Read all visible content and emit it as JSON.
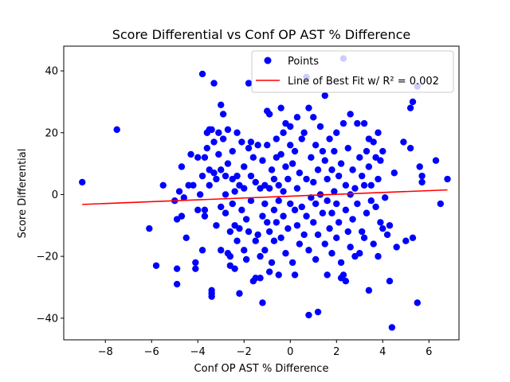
{
  "chart_data": {
    "type": "scatter",
    "title": "Score Differential vs Conf OP AST % Difference",
    "xlabel": "Conf OP AST % Difference",
    "ylabel": "Score Differential",
    "xlim": [
      -9.8,
      7.3
    ],
    "ylim": [
      -47,
      48
    ],
    "x_ticks": [
      -8,
      -6,
      -4,
      -2,
      0,
      2,
      4,
      6
    ],
    "y_ticks": [
      -40,
      -20,
      0,
      20,
      40
    ],
    "tick_labels": {
      "x": [
        "−8",
        "−6",
        "−4",
        "−2",
        "0",
        "2",
        "4",
        "6"
      ],
      "y": [
        "−40",
        "−20",
        "0",
        "20",
        "40"
      ]
    },
    "grid": false,
    "legend_position": "top-right",
    "colors": {
      "points": "#0000ff",
      "fit_line": "#ff0000"
    },
    "series": [
      {
        "name": "Points",
        "kind": "scatter",
        "points": [
          [
            -9.0,
            4
          ],
          [
            -7.5,
            21
          ],
          [
            -6.1,
            -11
          ],
          [
            -5.8,
            -23
          ],
          [
            -5.5,
            3
          ],
          [
            -5.0,
            -2
          ],
          [
            -4.9,
            -8
          ],
          [
            -4.9,
            -24
          ],
          [
            -4.9,
            -29
          ],
          [
            -4.8,
            1
          ],
          [
            -4.7,
            -7
          ],
          [
            -4.7,
            9
          ],
          [
            -4.6,
            -1
          ],
          [
            -4.5,
            -14
          ],
          [
            -4.4,
            3
          ],
          [
            -4.3,
            13
          ],
          [
            -4.2,
            3
          ],
          [
            -4.1,
            -22
          ],
          [
            -4.1,
            -24
          ],
          [
            -4.0,
            -5
          ],
          [
            -4.0,
            12
          ],
          [
            -3.9,
            0
          ],
          [
            -3.8,
            39
          ],
          [
            -3.8,
            -18
          ],
          [
            -3.8,
            6
          ],
          [
            -3.7,
            12
          ],
          [
            -3.7,
            -7
          ],
          [
            -3.7,
            -5
          ],
          [
            -3.6,
            20
          ],
          [
            -3.6,
            15
          ],
          [
            -3.5,
            21
          ],
          [
            -3.5,
            8
          ],
          [
            -3.5,
            3
          ],
          [
            -3.4,
            -31
          ],
          [
            -3.4,
            -33
          ],
          [
            -3.4,
            -32
          ],
          [
            -3.4,
            21
          ],
          [
            -3.3,
            36
          ],
          [
            -3.3,
            17
          ],
          [
            -3.3,
            7
          ],
          [
            -3.2,
            5
          ],
          [
            -3.2,
            -10
          ],
          [
            -3.1,
            20
          ],
          [
            -3.1,
            13
          ],
          [
            -3.0,
            29
          ],
          [
            -3.0,
            -18
          ],
          [
            -3.0,
            -4
          ],
          [
            -3.0,
            8
          ],
          [
            -2.9,
            26
          ],
          [
            -2.9,
            18
          ],
          [
            -2.8,
            6
          ],
          [
            -2.8,
            0
          ],
          [
            -2.8,
            -6
          ],
          [
            -2.7,
            21
          ],
          [
            -2.7,
            10
          ],
          [
            -2.7,
            -19
          ],
          [
            -2.6,
            -20
          ],
          [
            -2.6,
            -12
          ],
          [
            -2.6,
            -23
          ],
          [
            -2.5,
            14
          ],
          [
            -2.5,
            5
          ],
          [
            -2.5,
            -3
          ],
          [
            -2.4,
            -24
          ],
          [
            -2.4,
            -10
          ],
          [
            -2.4,
            1
          ],
          [
            -2.3,
            20
          ],
          [
            -2.3,
            6
          ],
          [
            -2.3,
            -15
          ],
          [
            -2.2,
            -11
          ],
          [
            -2.2,
            3
          ],
          [
            -2.2,
            -32
          ],
          [
            -2.1,
            17
          ],
          [
            -2.1,
            -5
          ],
          [
            -2.0,
            9
          ],
          [
            -2.0,
            2
          ],
          [
            -2.0,
            -18
          ],
          [
            -1.9,
            -8
          ],
          [
            -1.9,
            -21
          ],
          [
            -1.8,
            36
          ],
          [
            -1.8,
            15
          ],
          [
            -1.8,
            -12
          ],
          [
            -1.7,
            17
          ],
          [
            -1.7,
            6
          ],
          [
            -1.7,
            -2
          ],
          [
            -1.6,
            -28
          ],
          [
            -1.6,
            12
          ],
          [
            -1.5,
            -27
          ],
          [
            -1.5,
            -15
          ],
          [
            -1.5,
            4
          ],
          [
            -1.4,
            16
          ],
          [
            -1.4,
            -13
          ],
          [
            -1.3,
            -27
          ],
          [
            -1.3,
            2
          ],
          [
            -1.3,
            -20
          ],
          [
            -1.2,
            -35
          ],
          [
            -1.2,
            11
          ],
          [
            -1.2,
            -7
          ],
          [
            -1.1,
            3
          ],
          [
            -1.1,
            -3
          ],
          [
            -1.1,
            -18
          ],
          [
            -1.0,
            27
          ],
          [
            -1.0,
            16
          ],
          [
            -1.0,
            -9
          ],
          [
            -0.9,
            26
          ],
          [
            -0.9,
            2
          ],
          [
            -0.9,
            -25
          ],
          [
            -0.9,
            -12
          ],
          [
            -0.8,
            8
          ],
          [
            -0.8,
            -22
          ],
          [
            -0.7,
            5
          ],
          [
            -0.7,
            -5
          ],
          [
            -0.7,
            -15
          ],
          [
            -0.6,
            18
          ],
          [
            -0.6,
            12
          ],
          [
            -0.6,
            -9
          ],
          [
            -0.5,
            -26
          ],
          [
            -0.5,
            3
          ],
          [
            -0.5,
            -2
          ],
          [
            -0.4,
            28
          ],
          [
            -0.4,
            13
          ],
          [
            -0.4,
            -14
          ],
          [
            -0.3,
            20
          ],
          [
            -0.3,
            -7
          ],
          [
            -0.3,
            1
          ],
          [
            -0.2,
            23
          ],
          [
            -0.2,
            9
          ],
          [
            -0.2,
            -19
          ],
          [
            -0.1,
            5
          ],
          [
            -0.1,
            -11
          ],
          [
            0.0,
            16
          ],
          [
            0.0,
            -3
          ],
          [
            0.0,
            22
          ],
          [
            0.1,
            -22
          ],
          [
            0.1,
            10
          ],
          [
            0.2,
            14
          ],
          [
            0.2,
            -5
          ],
          [
            0.2,
            -26
          ],
          [
            0.3,
            25
          ],
          [
            0.3,
            2
          ],
          [
            0.3,
            -10
          ],
          [
            0.4,
            -16
          ],
          [
            0.4,
            7
          ],
          [
            0.5,
            -4
          ],
          [
            0.5,
            18
          ],
          [
            0.6,
            -13
          ],
          [
            0.6,
            20
          ],
          [
            0.7,
            -7
          ],
          [
            0.7,
            38
          ],
          [
            0.7,
            5
          ],
          [
            0.8,
            28
          ],
          [
            0.8,
            -39
          ],
          [
            0.8,
            -18
          ],
          [
            0.9,
            12
          ],
          [
            0.9,
            -1
          ],
          [
            1.0,
            25
          ],
          [
            1.0,
            -9
          ],
          [
            1.0,
            4
          ],
          [
            1.1,
            16
          ],
          [
            1.1,
            -3
          ],
          [
            1.1,
            -21
          ],
          [
            1.2,
            -38
          ],
          [
            1.2,
            8
          ],
          [
            1.2,
            -13
          ],
          [
            1.3,
            22
          ],
          [
            1.3,
            0
          ],
          [
            1.4,
            -6
          ],
          [
            1.4,
            14
          ],
          [
            1.5,
            11
          ],
          [
            1.5,
            -16
          ],
          [
            1.5,
            32
          ],
          [
            1.6,
            -26
          ],
          [
            1.6,
            5
          ],
          [
            1.6,
            -2
          ],
          [
            1.7,
            18
          ],
          [
            1.7,
            -11
          ],
          [
            1.8,
            8
          ],
          [
            1.8,
            -6
          ],
          [
            1.8,
            -19
          ],
          [
            1.9,
            14
          ],
          [
            1.9,
            1
          ],
          [
            2.0,
            -14
          ],
          [
            2.0,
            20
          ],
          [
            2.0,
            -3
          ],
          [
            2.1,
            6
          ],
          [
            2.1,
            -9
          ],
          [
            2.2,
            -27
          ],
          [
            2.2,
            10
          ],
          [
            2.2,
            -22
          ],
          [
            2.3,
            44
          ],
          [
            2.3,
            23
          ],
          [
            2.3,
            -26
          ],
          [
            2.4,
            -5
          ],
          [
            2.4,
            3
          ],
          [
            2.4,
            -28
          ],
          [
            2.5,
            15
          ],
          [
            2.5,
            -12
          ],
          [
            2.6,
            26
          ],
          [
            2.6,
            0
          ],
          [
            2.6,
            -17
          ],
          [
            2.7,
            8
          ],
          [
            2.7,
            -8
          ],
          [
            2.8,
            -20
          ],
          [
            2.8,
            2
          ],
          [
            2.9,
            23
          ],
          [
            2.9,
            -3
          ],
          [
            3.0,
            12
          ],
          [
            3.0,
            -19
          ],
          [
            3.1,
            6
          ],
          [
            3.1,
            -12
          ],
          [
            3.2,
            23
          ],
          [
            3.2,
            3
          ],
          [
            3.2,
            -14
          ],
          [
            3.3,
            14
          ],
          [
            3.3,
            -6
          ],
          [
            3.4,
            18
          ],
          [
            3.4,
            9
          ],
          [
            3.4,
            -31
          ],
          [
            3.5,
            3
          ],
          [
            3.5,
            -2
          ],
          [
            3.6,
            17
          ],
          [
            3.6,
            -16
          ],
          [
            3.7,
            12
          ],
          [
            3.7,
            -4
          ],
          [
            3.8,
            -20
          ],
          [
            3.8,
            20
          ],
          [
            3.8,
            5
          ],
          [
            3.9,
            -9
          ],
          [
            3.9,
            11
          ],
          [
            4.0,
            14
          ],
          [
            4.0,
            -11
          ],
          [
            4.1,
            -1
          ],
          [
            4.2,
            -13
          ],
          [
            4.3,
            -10
          ],
          [
            4.3,
            -28
          ],
          [
            4.4,
            -43
          ],
          [
            4.5,
            7
          ],
          [
            4.6,
            -17
          ],
          [
            4.9,
            17
          ],
          [
            5.0,
            -15
          ],
          [
            5.2,
            15
          ],
          [
            5.2,
            28
          ],
          [
            5.3,
            30
          ],
          [
            5.3,
            -14
          ],
          [
            5.5,
            35
          ],
          [
            5.5,
            -35
          ],
          [
            5.6,
            9
          ],
          [
            5.7,
            6
          ],
          [
            5.7,
            4
          ],
          [
            6.3,
            11
          ],
          [
            6.5,
            -3
          ],
          [
            6.8,
            5
          ]
        ]
      },
      {
        "name": "Line of Best Fit w/ R² = 0.002",
        "kind": "line",
        "points": [
          [
            -9.0,
            -3.2
          ],
          [
            6.8,
            1.5
          ]
        ]
      }
    ]
  }
}
